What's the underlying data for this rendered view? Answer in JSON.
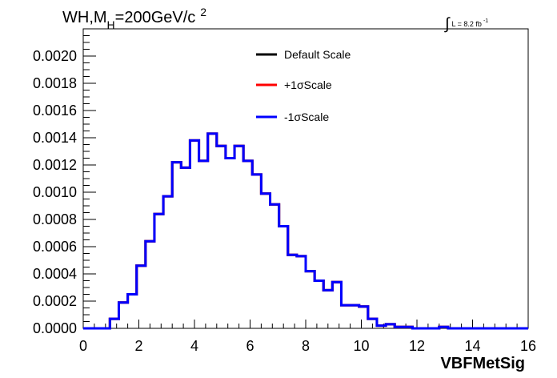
{
  "title": {
    "prefix": "WH,M",
    "subscript": "H",
    "value": "=200GeV/c",
    "superscript": "2"
  },
  "luminosity": {
    "integral_sign": "∫",
    "text": "L = 8.2 fb",
    "exponent": "-1"
  },
  "chart_data": {
    "type": "line",
    "style": "step-histogram",
    "xlabel": "VBFMetSig",
    "ylabel": "",
    "xlim": [
      0,
      16
    ],
    "ylim": [
      0,
      0.0022
    ],
    "x_ticks": [
      0,
      2,
      4,
      6,
      8,
      10,
      12,
      14,
      16
    ],
    "y_ticks": [
      0.0,
      0.0002,
      0.0004,
      0.0006,
      0.0008,
      0.001,
      0.0012,
      0.0014,
      0.0016,
      0.0018,
      0.002
    ],
    "y_tick_decimals": 4,
    "bin_width": 0.32,
    "bin_start": 0,
    "grid": false,
    "legend_position": "top-center",
    "series": [
      {
        "name": "Default Scale",
        "color": "#000000",
        "values": [
          0.0,
          0.0,
          0.0,
          7e-05,
          0.00019,
          0.00025,
          0.00046,
          0.00064,
          0.00084,
          0.00097,
          0.00122,
          0.00118,
          0.00138,
          0.00123,
          0.00143,
          0.00134,
          0.00125,
          0.00134,
          0.00123,
          0.00113,
          0.00099,
          0.00091,
          0.00075,
          0.00054,
          0.00053,
          0.00042,
          0.00035,
          0.00028,
          0.00034,
          0.00017,
          0.00017,
          0.00016,
          7e-05,
          2e-05,
          3e-05,
          1e-05,
          1e-05,
          0.0,
          0.0,
          0.0,
          1e-05,
          0.0,
          0.0,
          0.0,
          0.0,
          0.0,
          0.0,
          0.0,
          0.0,
          0.0
        ]
      },
      {
        "name": "+1σScale",
        "color": "#ff0000",
        "values": [
          0.0,
          0.0,
          0.0,
          7e-05,
          0.00019,
          0.00025,
          0.00046,
          0.00064,
          0.00084,
          0.00097,
          0.00122,
          0.00118,
          0.00138,
          0.00123,
          0.00143,
          0.00134,
          0.00125,
          0.00134,
          0.00123,
          0.00113,
          0.00099,
          0.00091,
          0.00075,
          0.00054,
          0.00053,
          0.00042,
          0.00035,
          0.00028,
          0.00034,
          0.00017,
          0.00017,
          0.00016,
          7e-05,
          2e-05,
          3e-05,
          1e-05,
          1e-05,
          0.0,
          0.0,
          0.0,
          1e-05,
          0.0,
          0.0,
          0.0,
          0.0,
          0.0,
          0.0,
          0.0,
          0.0,
          0.0
        ]
      },
      {
        "name": "-1σScale",
        "color": "#0000ff",
        "values": [
          0.0,
          0.0,
          0.0,
          7e-05,
          0.00019,
          0.00025,
          0.00046,
          0.00064,
          0.00084,
          0.00097,
          0.00122,
          0.00118,
          0.00138,
          0.00123,
          0.00143,
          0.00134,
          0.00125,
          0.00134,
          0.00123,
          0.00113,
          0.00099,
          0.00091,
          0.00075,
          0.00054,
          0.00053,
          0.00042,
          0.00035,
          0.00028,
          0.00034,
          0.00017,
          0.00017,
          0.00016,
          7e-05,
          2e-05,
          3e-05,
          1e-05,
          1e-05,
          0.0,
          0.0,
          0.0,
          1e-05,
          0.0,
          0.0,
          0.0,
          0.0,
          0.0,
          0.0,
          0.0,
          0.0,
          0.0
        ]
      }
    ]
  }
}
